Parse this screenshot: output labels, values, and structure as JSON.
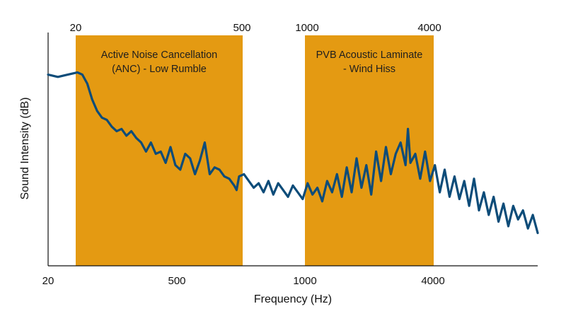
{
  "chart_data": {
    "type": "line",
    "title": "",
    "xlabel": "Frequency (Hz)",
    "ylabel": "Sound Intensity (dB)",
    "x_ticks": [
      "20",
      "500",
      "1000",
      "4000"
    ],
    "top_ticks": [
      "20",
      "500",
      "1000",
      "4000"
    ],
    "y_ticks_shown": false,
    "ylim": [
      0,
      100
    ],
    "grid": false,
    "band_color": "#e49a12",
    "line_color": "#0d4c79",
    "bands": [
      {
        "label_lines": [
          "Active Noise Cancellation",
          "(ANC) - Low Rumble"
        ],
        "from_tick": "20",
        "to_tick": "500"
      },
      {
        "label_lines": [
          "PVB Acoustic Laminate",
          "- Wind Hiss"
        ],
        "from_tick": "1000",
        "to_tick": "4000"
      }
    ],
    "series": [
      {
        "points": [
          [
            0.0,
            82
          ],
          [
            0.02,
            81
          ],
          [
            0.04,
            82
          ],
          [
            0.06,
            83
          ],
          [
            0.07,
            82
          ],
          [
            0.08,
            78
          ],
          [
            0.09,
            71
          ],
          [
            0.1,
            66
          ],
          [
            0.11,
            63
          ],
          [
            0.12,
            62
          ],
          [
            0.13,
            59
          ],
          [
            0.14,
            57
          ],
          [
            0.15,
            58
          ],
          [
            0.16,
            55
          ],
          [
            0.17,
            57
          ],
          [
            0.18,
            54
          ],
          [
            0.19,
            52
          ],
          [
            0.2,
            48
          ],
          [
            0.21,
            52
          ],
          [
            0.22,
            47
          ],
          [
            0.23,
            48
          ],
          [
            0.24,
            43
          ],
          [
            0.25,
            50
          ],
          [
            0.26,
            42
          ],
          [
            0.27,
            40
          ],
          [
            0.28,
            47
          ],
          [
            0.29,
            45
          ],
          [
            0.3,
            38
          ],
          [
            0.31,
            44
          ],
          [
            0.32,
            52
          ],
          [
            0.33,
            38
          ],
          [
            0.34,
            41
          ],
          [
            0.35,
            40
          ],
          [
            0.36,
            37
          ],
          [
            0.37,
            36
          ],
          [
            0.38,
            33
          ],
          [
            0.385,
            31
          ],
          [
            0.39,
            37
          ],
          [
            0.4,
            38
          ],
          [
            0.41,
            35
          ],
          [
            0.42,
            32
          ],
          [
            0.43,
            34
          ],
          [
            0.44,
            30
          ],
          [
            0.45,
            35
          ],
          [
            0.46,
            29
          ],
          [
            0.47,
            34
          ],
          [
            0.48,
            31
          ],
          [
            0.49,
            28
          ],
          [
            0.5,
            33
          ],
          [
            0.51,
            30
          ],
          [
            0.52,
            27
          ],
          [
            0.53,
            34
          ],
          [
            0.54,
            29
          ],
          [
            0.55,
            32
          ],
          [
            0.56,
            26
          ],
          [
            0.57,
            35
          ],
          [
            0.58,
            30
          ],
          [
            0.59,
            38
          ],
          [
            0.6,
            28
          ],
          [
            0.61,
            41
          ],
          [
            0.62,
            30
          ],
          [
            0.63,
            45
          ],
          [
            0.64,
            32
          ],
          [
            0.65,
            42
          ],
          [
            0.66,
            29
          ],
          [
            0.67,
            48
          ],
          [
            0.68,
            35
          ],
          [
            0.69,
            50
          ],
          [
            0.7,
            38
          ],
          [
            0.71,
            47
          ],
          [
            0.72,
            52
          ],
          [
            0.73,
            42
          ],
          [
            0.735,
            58
          ],
          [
            0.74,
            43
          ],
          [
            0.75,
            47
          ],
          [
            0.76,
            36
          ],
          [
            0.77,
            48
          ],
          [
            0.78,
            35
          ],
          [
            0.79,
            42
          ],
          [
            0.8,
            30
          ],
          [
            0.81,
            40
          ],
          [
            0.82,
            28
          ],
          [
            0.83,
            37
          ],
          [
            0.84,
            27
          ],
          [
            0.85,
            35
          ],
          [
            0.86,
            24
          ],
          [
            0.87,
            36
          ],
          [
            0.88,
            22
          ],
          [
            0.89,
            30
          ],
          [
            0.9,
            20
          ],
          [
            0.91,
            28
          ],
          [
            0.92,
            17
          ],
          [
            0.93,
            25
          ],
          [
            0.94,
            15
          ],
          [
            0.95,
            24
          ],
          [
            0.96,
            18
          ],
          [
            0.97,
            22
          ],
          [
            0.98,
            14
          ],
          [
            0.99,
            20
          ],
          [
            1.0,
            12
          ]
        ]
      }
    ]
  }
}
